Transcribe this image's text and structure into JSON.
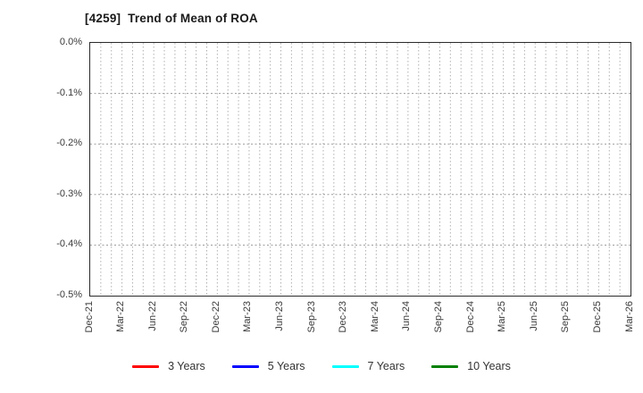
{
  "chart_data": {
    "type": "line",
    "title": "[4259]  Trend of Mean of ROA",
    "xlabel": "",
    "ylabel": "",
    "x_tick_labels": [
      "Dec-21",
      "Mar-22",
      "Jun-22",
      "Sep-22",
      "Dec-22",
      "Mar-23",
      "Jun-23",
      "Sep-23",
      "Dec-23",
      "Mar-24",
      "Jun-24",
      "Sep-24",
      "Dec-24",
      "Mar-25",
      "Jun-25",
      "Sep-25",
      "Dec-25",
      "Mar-26"
    ],
    "y_tick_labels": [
      "0.0%",
      "-0.1%",
      "-0.2%",
      "-0.3%",
      "-0.4%",
      "-0.5%"
    ],
    "ylim": [
      -0.5,
      0.0
    ],
    "y_unit": "%",
    "months_span": 51,
    "grid": "on",
    "grid_style": "dotted",
    "legend_position": "bottom-center",
    "series": [
      {
        "name": "3 Years",
        "color": "#ff0000",
        "values": []
      },
      {
        "name": "5 Years",
        "color": "#0000ff",
        "values": []
      },
      {
        "name": "7 Years",
        "color": "#00ffff",
        "values": []
      },
      {
        "name": "10 Years",
        "color": "#008000",
        "values": []
      }
    ],
    "plot_note": "no data lines rendered in plot area"
  },
  "style_colors": {
    "axis_border": "#2b2b2b",
    "grid_vertical": "#b0b0b0",
    "grid_horizontal": "#9a9a9a",
    "tick_label": "#3a3a3a",
    "title": "#1a1a1a"
  }
}
